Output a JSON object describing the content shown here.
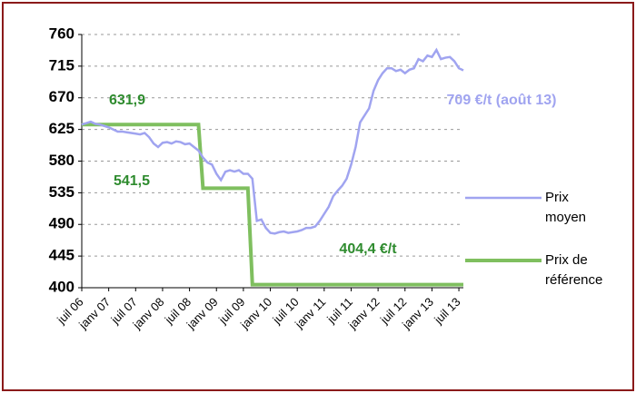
{
  "chart_data": {
    "type": "line",
    "categories": [
      "juil 06",
      null,
      null,
      null,
      null,
      null,
      "janv 07",
      null,
      null,
      null,
      null,
      null,
      "juil 07",
      null,
      null,
      null,
      null,
      null,
      "janv 08",
      null,
      null,
      null,
      null,
      null,
      "juil 08",
      null,
      null,
      null,
      null,
      null,
      "janv 09",
      null,
      null,
      null,
      null,
      null,
      "juil 09",
      null,
      null,
      null,
      null,
      null,
      "janv 10",
      null,
      null,
      null,
      null,
      null,
      "juil 10",
      null,
      null,
      null,
      null,
      null,
      "janv 11",
      null,
      null,
      null,
      null,
      null,
      "juil 11",
      null,
      null,
      null,
      null,
      null,
      "janv 12",
      null,
      null,
      null,
      null,
      null,
      "juil 12",
      null,
      null,
      null,
      null,
      null,
      "janv 13",
      null,
      null,
      null,
      null,
      null,
      "juil 13",
      null
    ],
    "series": [
      {
        "name": "Prix moyen",
        "color": "#a0a4f0",
        "values": [
          632,
          634,
          636,
          633,
          632,
          630,
          628,
          625,
          622,
          622,
          621,
          620,
          619,
          618,
          620,
          614,
          605,
          600,
          606,
          607,
          605,
          608,
          607,
          604,
          605,
          600,
          595,
          585,
          578,
          575,
          562,
          553,
          565,
          567,
          565,
          567,
          562,
          562,
          555,
          495,
          497,
          485,
          478,
          477,
          479,
          480,
          478,
          479,
          480,
          482,
          485,
          485,
          487,
          495,
          505,
          515,
          530,
          538,
          545,
          555,
          575,
          600,
          635,
          645,
          655,
          680,
          695,
          705,
          712,
          712,
          708,
          710,
          705,
          710,
          712,
          725,
          722,
          730,
          728,
          738,
          725,
          727,
          728,
          722,
          712,
          709
        ]
      },
      {
        "name": "Prix de référence",
        "color": "#7fbf5f",
        "values": [
          631.9,
          631.9,
          631.9,
          631.9,
          631.9,
          631.9,
          631.9,
          631.9,
          631.9,
          631.9,
          631.9,
          631.9,
          631.9,
          631.9,
          631.9,
          631.9,
          631.9,
          631.9,
          631.9,
          631.9,
          631.9,
          631.9,
          631.9,
          631.9,
          631.9,
          631.9,
          631.9,
          541.5,
          541.5,
          541.5,
          541.5,
          541.5,
          541.5,
          541.5,
          541.5,
          541.5,
          541.5,
          541.5,
          404.4,
          404.4,
          404.4,
          404.4,
          404.4,
          404.4,
          404.4,
          404.4,
          404.4,
          404.4,
          404.4,
          404.4,
          404.4,
          404.4,
          404.4,
          404.4,
          404.4,
          404.4,
          404.4,
          404.4,
          404.4,
          404.4,
          404.4,
          404.4,
          404.4,
          404.4,
          404.4,
          404.4,
          404.4,
          404.4,
          404.4,
          404.4,
          404.4,
          404.4,
          404.4,
          404.4,
          404.4,
          404.4,
          404.4,
          404.4,
          404.4,
          404.4,
          404.4,
          404.4,
          404.4,
          404.4,
          404.4,
          404.4
        ]
      }
    ],
    "ylim": [
      400,
      760
    ],
    "yticks": [
      400,
      445,
      490,
      535,
      580,
      625,
      670,
      715,
      760
    ],
    "grid": true,
    "annotations": [
      {
        "text": "631,9",
        "color": "#2e8b2e"
      },
      {
        "text": "541,5",
        "color": "#2e8b2e"
      },
      {
        "text": "404,4 €/t",
        "color": "#2e8b2e"
      },
      {
        "text": "709 €/t (août 13)",
        "color": "#a0a4f0"
      }
    ]
  }
}
